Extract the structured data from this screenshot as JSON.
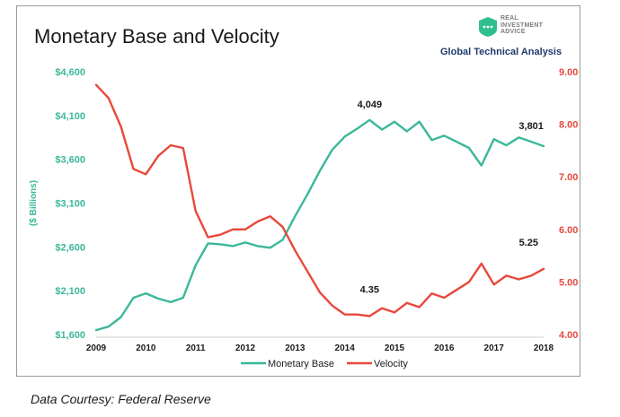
{
  "header": {
    "title": "Monetary Base and Velocity",
    "brand_text": "REAL\nINVESTMENT\nADVICE",
    "brand_subtitle": "Global Technical Analysis",
    "logo_icon": "real-investment-advice-logo",
    "brand_color": "#1f3a6b"
  },
  "footer": {
    "source": "Data Courtesy: Federal Reserve"
  },
  "chart_data": {
    "type": "line",
    "x_ticks": [
      "2009",
      "2010",
      "2011",
      "2012",
      "2013",
      "2014",
      "2015",
      "2016",
      "2017",
      "2018"
    ],
    "xlim": [
      2009,
      2018
    ],
    "y_left": {
      "label": "($ Billions)",
      "ticks": [
        "$1,600",
        "$2,100",
        "$2,600",
        "$3,100",
        "$3,600",
        "$4,100",
        "$4,600"
      ],
      "tick_values": [
        1600,
        2100,
        2600,
        3100,
        3600,
        4100,
        4600
      ],
      "lim": [
        1600,
        4600
      ],
      "color": "#3bb79a"
    },
    "y_right": {
      "label": "",
      "ticks": [
        "4.00",
        "5.00",
        "6.00",
        "7.00",
        "8.00",
        "9.00"
      ],
      "tick_values": [
        4,
        5,
        6,
        7,
        8,
        9
      ],
      "lim": [
        4,
        9
      ],
      "color": "#e8483c"
    },
    "series": [
      {
        "name": "Monetary Base",
        "axis": "left",
        "color": "#3bb79a",
        "x": [
          2009.0,
          2009.25,
          2009.5,
          2009.75,
          2010.0,
          2010.25,
          2010.5,
          2010.75,
          2011.0,
          2011.25,
          2011.5,
          2011.75,
          2012.0,
          2012.25,
          2012.5,
          2012.75,
          2013.0,
          2013.25,
          2013.5,
          2013.75,
          2014.0,
          2014.25,
          2014.5,
          2014.75,
          2015.0,
          2015.25,
          2015.5,
          2015.75,
          2016.0,
          2016.25,
          2016.5,
          2016.75,
          2017.0,
          2017.25,
          2017.5,
          2017.75,
          2018.0
        ],
        "values": [
          1650,
          1690,
          1800,
          2020,
          2070,
          2010,
          1970,
          2020,
          2390,
          2640,
          2630,
          2610,
          2650,
          2610,
          2590,
          2680,
          2950,
          3200,
          3470,
          3710,
          3860,
          3950,
          4049,
          3940,
          4030,
          3920,
          4030,
          3820,
          3870,
          3800,
          3730,
          3530,
          3830,
          3760,
          3850,
          3801,
          3750
        ]
      },
      {
        "name": "Velocity",
        "axis": "right",
        "color": "#e8483c",
        "x": [
          2009.0,
          2009.25,
          2009.5,
          2009.75,
          2010.0,
          2010.25,
          2010.5,
          2010.75,
          2011.0,
          2011.25,
          2011.5,
          2011.75,
          2012.0,
          2012.25,
          2012.5,
          2012.75,
          2013.0,
          2013.25,
          2013.5,
          2013.75,
          2014.0,
          2014.25,
          2014.5,
          2014.75,
          2015.0,
          2015.25,
          2015.5,
          2015.75,
          2016.0,
          2016.25,
          2016.5,
          2016.75,
          2017.0,
          2017.25,
          2017.5,
          2017.75,
          2018.0
        ],
        "values": [
          8.75,
          8.5,
          7.95,
          7.15,
          7.05,
          7.4,
          7.6,
          7.55,
          6.35,
          5.85,
          5.9,
          6.0,
          6.0,
          6.15,
          6.25,
          6.05,
          5.6,
          5.2,
          4.8,
          4.55,
          4.38,
          4.38,
          4.35,
          4.5,
          4.42,
          4.6,
          4.52,
          4.78,
          4.7,
          4.85,
          5.0,
          5.35,
          4.95,
          5.12,
          5.05,
          5.12,
          5.25
        ]
      }
    ],
    "annotations": [
      {
        "text": "4,049",
        "series": "Monetary Base",
        "x": 2014.5,
        "y": 4049
      },
      {
        "text": "3,801",
        "series": "Monetary Base",
        "x": 2017.75,
        "y": 3801
      },
      {
        "text": "4.35",
        "series": "Velocity",
        "x": 2014.5,
        "y": 4.35
      },
      {
        "text": "5.25",
        "series": "Velocity",
        "x": 2018.0,
        "y": 5.25
      }
    ],
    "legend": [
      "Monetary Base",
      "Velocity"
    ],
    "legend_position": "bottom-center",
    "grid": false
  }
}
